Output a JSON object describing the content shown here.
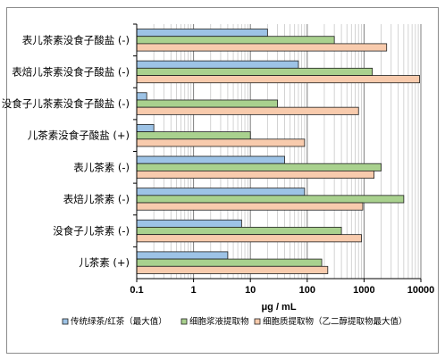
{
  "chart_data": {
    "type": "bar",
    "orientation": "horizontal",
    "xscale": "log",
    "xlim": [
      0.1,
      10000
    ],
    "xticks": [
      "0.1",
      "1",
      "10",
      "100",
      "1000",
      "10000"
    ],
    "xlabel": "μg / mL",
    "grid": "vertical, log minor",
    "legend_position": "bottom",
    "categories": [
      "表儿茶素没食子酸盐 (-)",
      "表焙儿茶素没食子酸盐 (-)",
      "没食子儿茶素没食子酸盐 (-)",
      "儿茶素没食子酸盐 (+)",
      "表儿茶素 (-)",
      "表焙儿茶素 (-)",
      "没食子儿茶素 (-)",
      "儿茶素 (+)"
    ],
    "series": [
      {
        "name": "传统绿茶/红茶（最大值）",
        "color": "#9dc3e6",
        "values": [
          20,
          70,
          0.15,
          0.2,
          40,
          90,
          7,
          4
        ]
      },
      {
        "name": "细胞浆液提取物",
        "color": "#a9d18e",
        "values": [
          300,
          1400,
          30,
          10,
          2000,
          5000,
          400,
          180
        ]
      },
      {
        "name": "细胞质提取物（乙二醇提取物最大值）",
        "color": "#f8cbad",
        "values": [
          2500,
          9500,
          800,
          90,
          1500,
          950,
          900,
          230
        ]
      }
    ]
  }
}
